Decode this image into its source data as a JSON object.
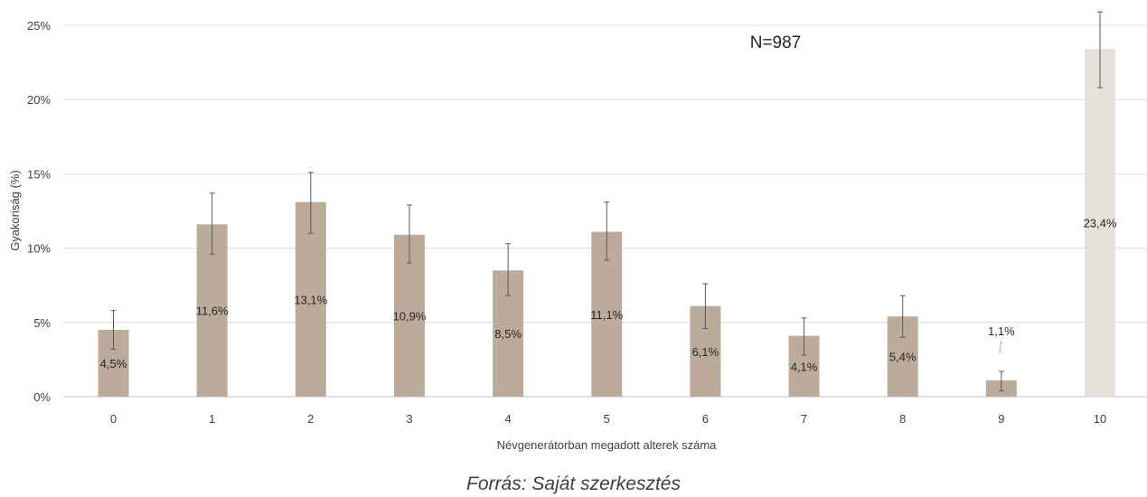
{
  "chart_data": {
    "type": "bar",
    "title": "",
    "xlabel": "Névgenerátorban megadott alterek száma",
    "ylabel": "Gyakoriság (%)",
    "ylim": [
      0,
      25
    ],
    "yticks": [
      0,
      5,
      10,
      15,
      20,
      25
    ],
    "ytick_labels": [
      "0%",
      "5%",
      "10%",
      "15%",
      "20%",
      "25%"
    ],
    "categories": [
      "0",
      "1",
      "2",
      "3",
      "4",
      "5",
      "6",
      "7",
      "8",
      "9",
      "10"
    ],
    "values": [
      4.5,
      11.6,
      13.1,
      10.9,
      8.5,
      11.1,
      6.1,
      4.1,
      5.4,
      1.1,
      23.4
    ],
    "value_labels": [
      "4,5%",
      "11,6%",
      "13,1%",
      "10,9%",
      "8,5%",
      "11,1%",
      "6,1%",
      "4,1%",
      "5,4%",
      "1,1%",
      "23,4%"
    ],
    "error_low": [
      3.2,
      9.6,
      11.0,
      9.0,
      6.8,
      9.2,
      4.6,
      2.8,
      4.0,
      0.4,
      20.8
    ],
    "error_high": [
      5.8,
      13.7,
      15.1,
      12.9,
      10.3,
      13.1,
      7.6,
      5.3,
      6.8,
      1.7,
      25.9
    ],
    "colors": [
      "#bcab9b",
      "#bcab9b",
      "#bcab9b",
      "#bcab9b",
      "#bcab9b",
      "#bcab9b",
      "#bcab9b",
      "#bcab9b",
      "#bcab9b",
      "#bcab9b",
      "#e6e1da"
    ],
    "grid": true,
    "annotation": "N=987"
  },
  "source": "Forrás: Saját szerkesztés"
}
